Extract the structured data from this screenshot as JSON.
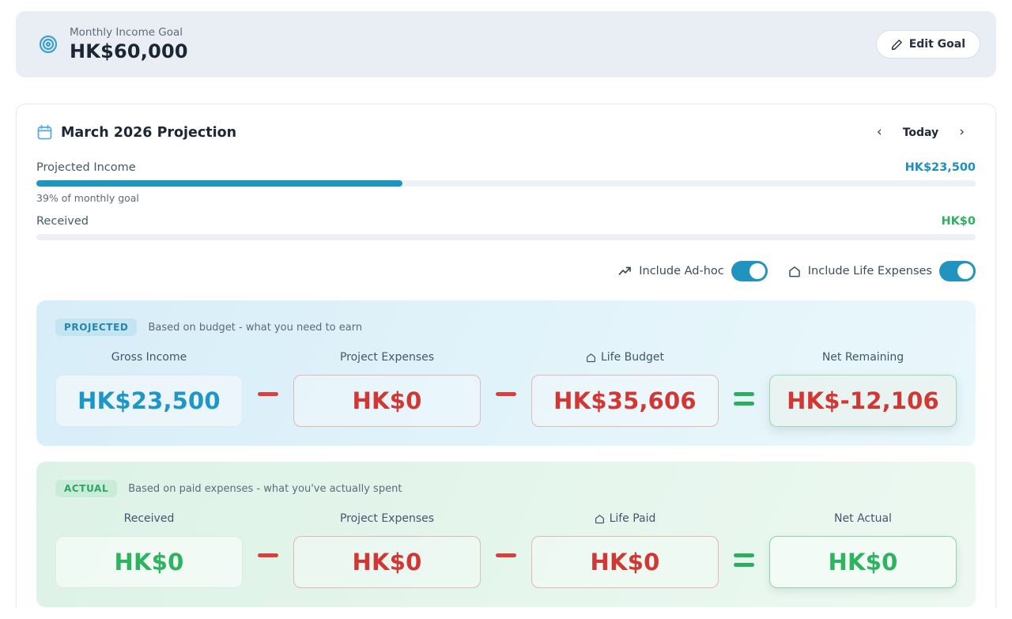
{
  "colors": {
    "teal": "#1e97c0",
    "green": "#2eb05f",
    "red": "#d23734",
    "banner_bg": "#e9eef4",
    "projected_bg": "#ddf0f8",
    "actual_bg": "#e2f4ea"
  },
  "goal_banner": {
    "label": "Monthly Income Goal",
    "value": "HK$60,000",
    "edit_button_label": "Edit Goal",
    "icon": "target-icon"
  },
  "card": {
    "title": "March 2026 Projection",
    "title_icon": "calendar-icon",
    "nav": {
      "prev": "‹",
      "today_label": "Today",
      "next": "›"
    },
    "progress_rows": [
      {
        "label": "Projected Income",
        "value": "HK$23,500",
        "percent": 39,
        "subtext": "39% of monthly goal"
      },
      {
        "label": "Received",
        "value": "HK$0",
        "percent": 0,
        "subtext": ""
      }
    ],
    "toggles": [
      {
        "label": "Include Ad-hoc",
        "icon": "trending-up-icon",
        "state": "on"
      },
      {
        "label": "Include Life Expenses",
        "icon": "home-icon",
        "state": "on"
      }
    ],
    "sections": [
      {
        "badge": "PROJECTED",
        "description": "Based on budget - what you need to earn",
        "columns": [
          {
            "label": "Gross Income",
            "value": "HK$23,500"
          },
          {
            "label": "Project Expenses",
            "value": "HK$0"
          },
          {
            "label": "Life Budget",
            "value": "HK$35,606",
            "icon": "home-icon"
          },
          {
            "label": "Net Remaining",
            "value": "HK$-12,106"
          }
        ],
        "operators": [
          "minus",
          "minus",
          "equals"
        ]
      },
      {
        "badge": "ACTUAL",
        "description": "Based on paid expenses - what you've actually spent",
        "columns": [
          {
            "label": "Received",
            "value": "HK$0"
          },
          {
            "label": "Project Expenses",
            "value": "HK$0"
          },
          {
            "label": "Life Paid",
            "value": "HK$0",
            "icon": "home-icon"
          },
          {
            "label": "Net Actual",
            "value": "HK$0"
          }
        ],
        "operators": [
          "minus",
          "minus",
          "equals"
        ]
      }
    ]
  }
}
